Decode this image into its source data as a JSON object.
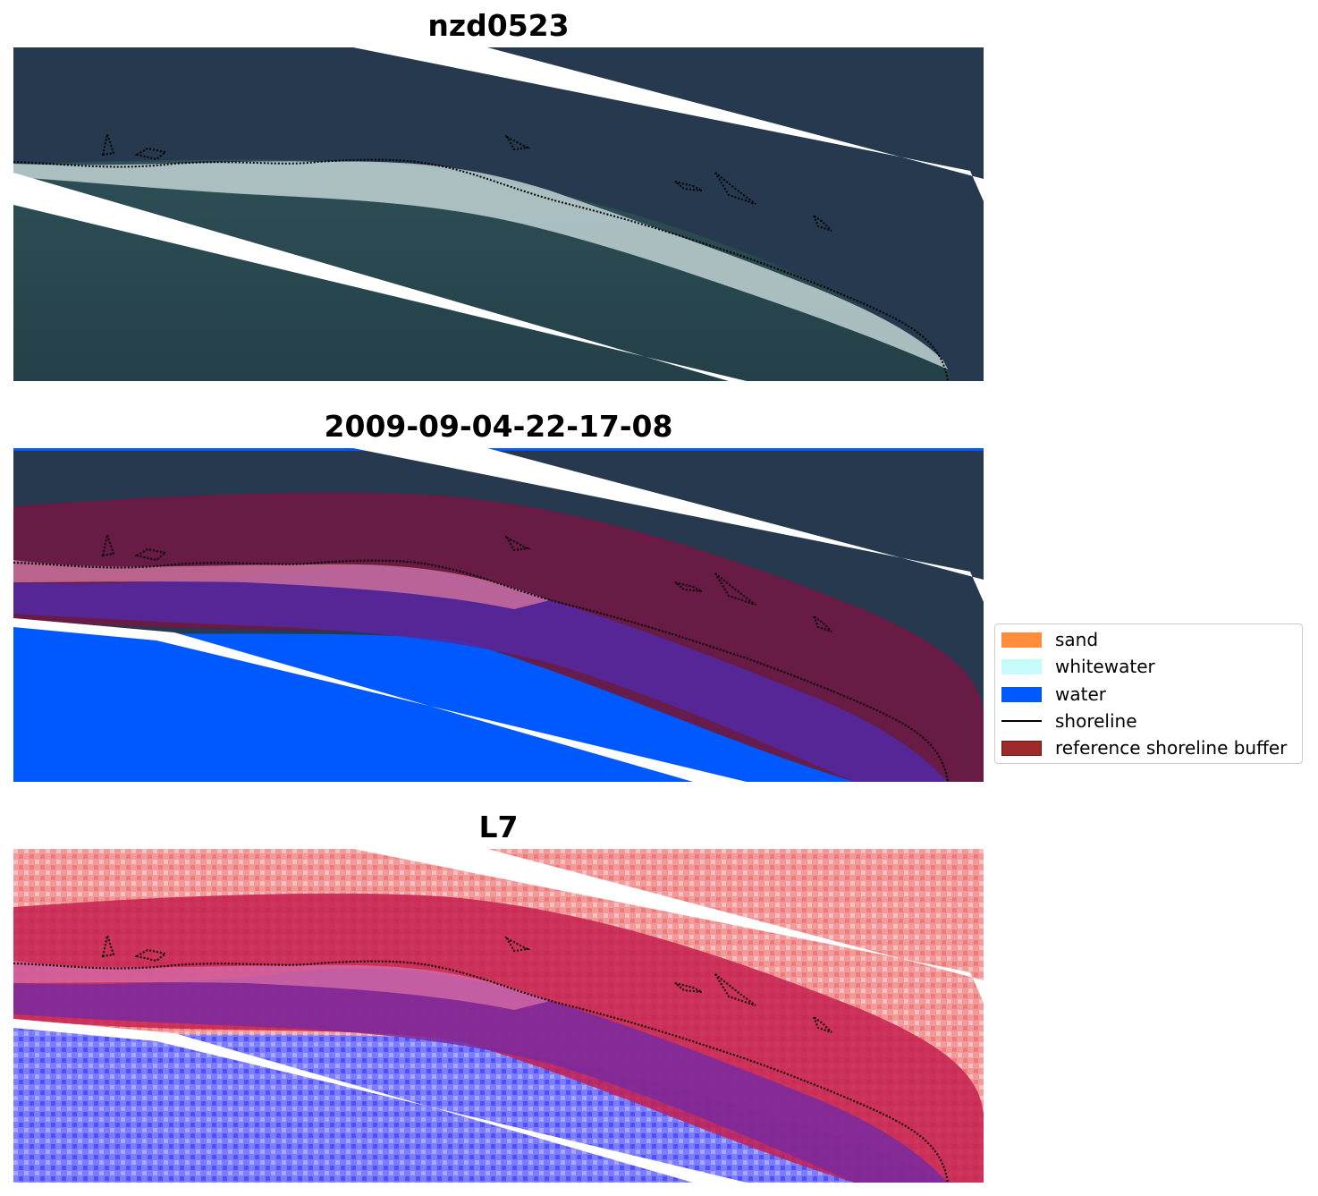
{
  "titles": {
    "panel1": "nzd0523",
    "panel2": "2009-09-04-22-17-08",
    "panel3": "L7"
  },
  "legend": [
    {
      "label": "sand",
      "color": "#ff8c3a",
      "kind": "patch"
    },
    {
      "label": "whitewater",
      "color": "#c6fbfb",
      "kind": "patch"
    },
    {
      "label": "water",
      "color": "#0059ff",
      "kind": "patch"
    },
    {
      "label": "shoreline",
      "color": "#000000",
      "kind": "line"
    },
    {
      "label": "reference shoreline buffer",
      "color": "#9e2a2a",
      "kind": "patch"
    }
  ],
  "colors": {
    "land": "#26384f",
    "sea": "#2c4a52",
    "beach": "#d6e6e6",
    "water_class": "#0059ff",
    "buffer": "#6c1a45",
    "index_high": "#e8323c",
    "index_low": "#4a4aff"
  }
}
